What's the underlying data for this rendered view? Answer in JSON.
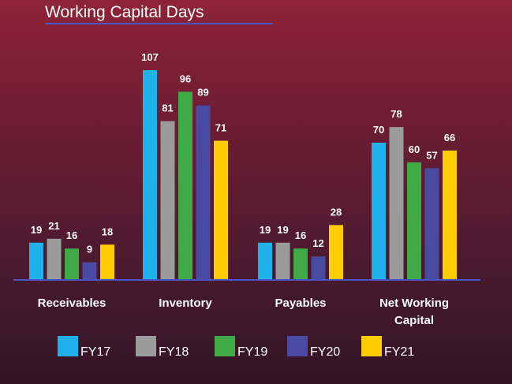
{
  "chart_data": {
    "type": "bar",
    "title": "Working Capital Days",
    "categories": [
      "Receivables",
      "Inventory",
      "Payables",
      "Net Working Capital"
    ],
    "category_lines": [
      [
        "Receivables"
      ],
      [
        "Inventory"
      ],
      [
        "Payables"
      ],
      [
        "Net Working",
        "Capital"
      ]
    ],
    "series": [
      {
        "name": "FY17",
        "color": "#1fb1ea",
        "values": [
          19,
          107,
          19,
          70
        ]
      },
      {
        "name": "FY18",
        "color": "#9b9b9b",
        "values": [
          21,
          81,
          19,
          78
        ]
      },
      {
        "name": "FY19",
        "color": "#3faa46",
        "values": [
          16,
          96,
          16,
          60
        ]
      },
      {
        "name": "FY20",
        "color": "#4b4aa3",
        "values": [
          9,
          89,
          12,
          57
        ]
      },
      {
        "name": "FY21",
        "color": "#ffcc00",
        "values": [
          18,
          71,
          28,
          66
        ]
      }
    ],
    "ylim": [
      0,
      107
    ],
    "data_labels": true,
    "grid": false,
    "legend_position": "bottom",
    "colors": {
      "axis": "#4a55c8",
      "title_underline": "#4a55c8",
      "text": "#ffffff"
    }
  }
}
